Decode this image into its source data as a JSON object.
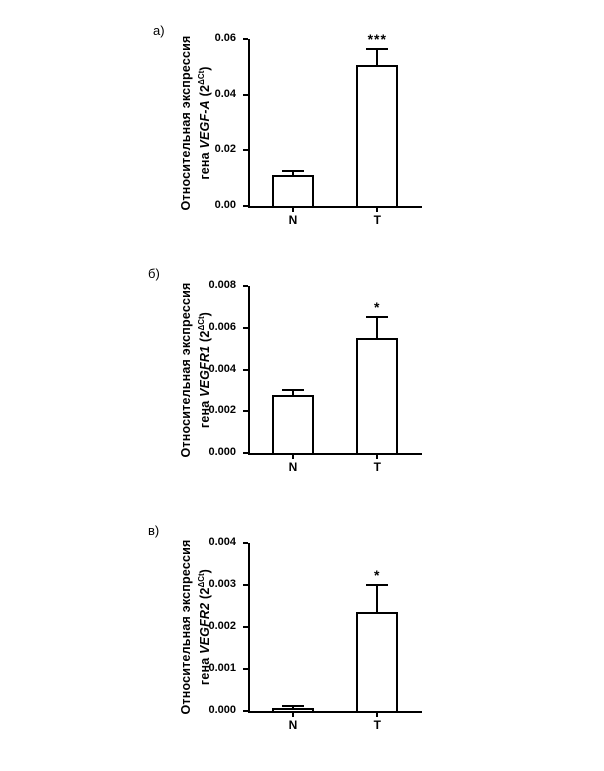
{
  "figure": {
    "background": "#ffffff",
    "axis_color": "#000000",
    "bar_fill": "#ffffff",
    "bar_border": "#000000"
  },
  "chart_data": [
    {
      "type": "bar",
      "panel_label": "а)",
      "categories": [
        "N",
        "T"
      ],
      "values": [
        0.0113,
        0.0505
      ],
      "errors": [
        0.0012,
        0.006
      ],
      "significance": [
        "",
        "***"
      ],
      "ylabel_line1": "Относительная экспрессия",
      "ylabel_gene_prefix": "гена ",
      "ylabel_gene": "VEGF-A",
      "ylabel_base": " (2",
      "ylabel_sup": "ΔCt",
      "ylabel_close": ")",
      "xlabel": "",
      "yticks": [
        "0.00",
        "0.02",
        "0.04",
        "0.06"
      ],
      "ylim": [
        0,
        0.06
      ],
      "grid": "off",
      "legend": "none"
    },
    {
      "type": "bar",
      "panel_label": "б)",
      "categories": [
        "N",
        "T"
      ],
      "values": [
        0.0028,
        0.0055
      ],
      "errors": [
        0.00023,
        0.001
      ],
      "significance": [
        "",
        "*"
      ],
      "ylabel_line1": "Относительная экспрессия",
      "ylabel_gene_prefix": "гена ",
      "ylabel_gene": "VEGFR1",
      "ylabel_base": " (2",
      "ylabel_sup": "ΔCt",
      "ylabel_close": ")",
      "xlabel": "",
      "yticks": [
        "0.000",
        "0.002",
        "0.004",
        "0.006",
        "0.008"
      ],
      "ylim": [
        0,
        0.008
      ],
      "grid": "off",
      "legend": "none"
    },
    {
      "type": "bar",
      "panel_label": "в)",
      "categories": [
        "N",
        "T"
      ],
      "values": [
        8e-05,
        0.00235
      ],
      "errors": [
        3e-05,
        0.00065
      ],
      "significance": [
        "",
        "*"
      ],
      "ylabel_line1": "Относительная экспрессия",
      "ylabel_gene_prefix": "гена ",
      "ylabel_gene": "VEGFR2",
      "ylabel_base": " (2",
      "ylabel_sup": "ΔCt",
      "ylabel_close": ")",
      "xlabel": "",
      "yticks": [
        "0.000",
        "0.001",
        "0.002",
        "0.003",
        "0.004"
      ],
      "ylim": [
        0,
        0.004
      ],
      "grid": "off",
      "legend": "none"
    }
  ]
}
